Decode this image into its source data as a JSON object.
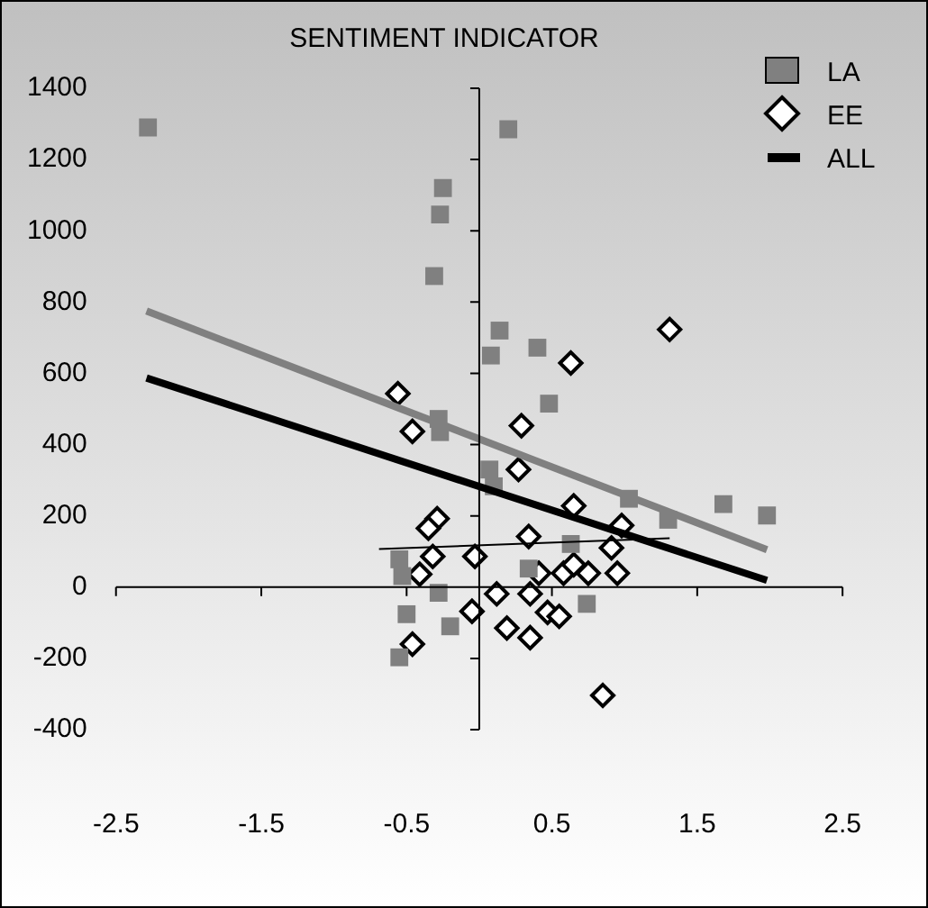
{
  "chart_data": {
    "type": "scatter",
    "title": "SENTIMENT INDICATOR",
    "xlim": [
      -2.5,
      2.5
    ],
    "xticks": [
      -2.5,
      -1.5,
      -0.5,
      0.5,
      1.5,
      2.5
    ],
    "ylim": [
      -400,
      1400
    ],
    "yticks": [
      -400,
      -200,
      0,
      200,
      400,
      600,
      800,
      1000,
      1200,
      1400
    ],
    "legend": "top right",
    "series": [
      {
        "name": "LA",
        "marker": "square",
        "color": "#808080",
        "x": [
          -2.28,
          -0.25,
          -0.27,
          -0.31,
          0.2,
          0.14,
          0.08,
          0.4,
          0.48,
          -0.28,
          -0.27,
          0.07,
          0.1,
          1.03,
          1.3,
          1.68,
          1.98,
          0.63,
          0.34,
          -0.28,
          0.74,
          -0.2,
          -0.55,
          -0.53,
          -0.5,
          -0.55
        ],
        "values": [
          1290,
          1120,
          1046,
          873,
          1285,
          720,
          650,
          672,
          515,
          472,
          435,
          330,
          283,
          248,
          189,
          233,
          201,
          121,
          52,
          -16,
          -47,
          -110,
          78,
          31,
          -76,
          -197
        ]
      },
      {
        "name": "EE",
        "marker": "diamond",
        "color": "#000000",
        "x": [
          -0.56,
          -0.46,
          0.63,
          1.31,
          0.29,
          0.27,
          0.65,
          0.98,
          0.34,
          0.91,
          -0.03,
          0.41,
          0.58,
          0.65,
          0.75,
          0.95,
          0.12,
          0.35,
          -0.05,
          0.47,
          0.55,
          0.19,
          0.35,
          0.85,
          -0.29,
          -0.35,
          -0.32,
          -0.41,
          -0.46
        ],
        "values": [
          543,
          437,
          629,
          723,
          453,
          330,
          228,
          173,
          142,
          110,
          86,
          39,
          39,
          63,
          39,
          39,
          -19,
          -19,
          -68,
          -71,
          -82,
          -115,
          -142,
          -304,
          192,
          165,
          86,
          36,
          -160
        ]
      },
      {
        "type": "line",
        "color": "#808080",
        "x": [
          -2.29,
          1.98
        ],
        "values": [
          775,
          105
        ]
      },
      {
        "name": "ALL",
        "type": "line",
        "color": "#000000",
        "x": [
          -2.29,
          1.98
        ],
        "values": [
          587,
          19
        ]
      },
      {
        "type": "line",
        "color": "#000000",
        "x": [
          -0.69,
          1.31
        ],
        "values": [
          107,
          137
        ]
      }
    ]
  }
}
